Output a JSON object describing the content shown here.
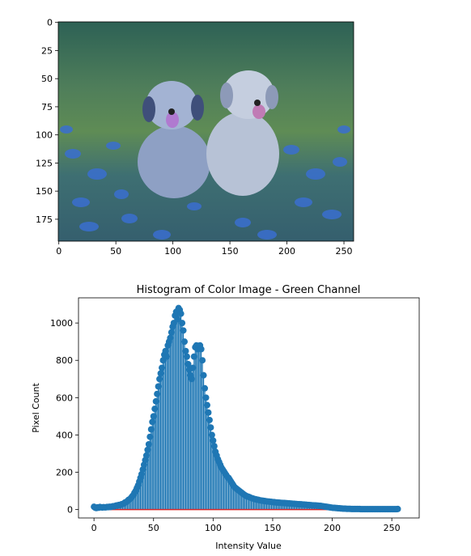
{
  "chart_data": [
    {
      "type": "image",
      "xlim": [
        -0.5,
        258.5
      ],
      "ylim": [
        194.5,
        -0.5
      ],
      "xticks": [
        0,
        50,
        100,
        150,
        200,
        250
      ],
      "yticks": [
        0,
        25,
        50,
        75,
        100,
        125,
        150,
        175
      ]
    },
    {
      "type": "stem",
      "title": "Histogram of Color Image - Green Channel",
      "xlabel": "Intensity Value",
      "ylabel": "Pixel Count",
      "color": "#1f77b4",
      "baseline_color": "#d62728",
      "xlim": [
        -13,
        273
      ],
      "ylim": [
        -45,
        1135
      ],
      "xticks": [
        0,
        50,
        100,
        150,
        200,
        250
      ],
      "yticks": [
        0,
        200,
        400,
        600,
        800,
        1000
      ],
      "x": [
        0,
        1,
        2,
        3,
        4,
        5,
        6,
        7,
        8,
        9,
        10,
        11,
        12,
        13,
        14,
        15,
        16,
        17,
        18,
        19,
        20,
        21,
        22,
        23,
        24,
        25,
        26,
        27,
        28,
        29,
        30,
        31,
        32,
        33,
        34,
        35,
        36,
        37,
        38,
        39,
        40,
        41,
        42,
        43,
        44,
        45,
        46,
        47,
        48,
        49,
        50,
        51,
        52,
        53,
        54,
        55,
        56,
        57,
        58,
        59,
        60,
        61,
        62,
        63,
        64,
        65,
        66,
        67,
        68,
        69,
        70,
        71,
        72,
        73,
        74,
        75,
        76,
        77,
        78,
        79,
        80,
        81,
        82,
        83,
        84,
        85,
        86,
        87,
        88,
        89,
        90,
        91,
        92,
        93,
        94,
        95,
        96,
        97,
        98,
        99,
        100,
        101,
        102,
        103,
        104,
        105,
        106,
        107,
        108,
        109,
        110,
        111,
        112,
        113,
        114,
        115,
        116,
        117,
        118,
        119,
        120,
        121,
        122,
        123,
        124,
        125,
        126,
        127,
        128,
        129,
        130,
        131,
        132,
        133,
        134,
        135,
        136,
        137,
        138,
        139,
        140,
        141,
        142,
        143,
        144,
        145,
        146,
        147,
        148,
        149,
        150,
        151,
        152,
        153,
        154,
        155,
        156,
        157,
        158,
        159,
        160,
        161,
        162,
        163,
        164,
        165,
        166,
        167,
        168,
        169,
        170,
        171,
        172,
        173,
        174,
        175,
        176,
        177,
        178,
        179,
        180,
        181,
        182,
        183,
        184,
        185,
        186,
        187,
        188,
        189,
        190,
        191,
        192,
        193,
        194,
        195,
        196,
        197,
        198,
        199,
        200,
        201,
        202,
        203,
        204,
        205,
        206,
        207,
        208,
        209,
        210,
        211,
        212,
        213,
        214,
        215,
        216,
        217,
        218,
        219,
        220,
        221,
        222,
        223,
        224,
        225,
        226,
        227,
        228,
        229,
        230,
        231,
        232,
        233,
        234,
        235,
        236,
        237,
        238,
        239,
        240,
        241,
        242,
        243,
        244,
        245,
        246,
        247,
        248,
        249,
        250,
        251,
        252,
        253,
        254,
        255
      ],
      "values": [
        15,
        10,
        8,
        12,
        10,
        14,
        12,
        11,
        13,
        12,
        12,
        14,
        13,
        15,
        14,
        16,
        18,
        17,
        20,
        22,
        22,
        25,
        24,
        28,
        30,
        32,
        38,
        40,
        45,
        52,
        55,
        62,
        70,
        78,
        90,
        100,
        115,
        130,
        150,
        170,
        190,
        215,
        240,
        265,
        290,
        320,
        350,
        390,
        430,
        470,
        500,
        540,
        580,
        620,
        660,
        700,
        730,
        760,
        800,
        830,
        850,
        820,
        880,
        900,
        920,
        950,
        980,
        1000,
        1040,
        1060,
        1020,
        1080,
        1070,
        1050,
        1000,
        960,
        900,
        850,
        820,
        780,
        750,
        720,
        700,
        760,
        820,
        870,
        880,
        860,
        870,
        880,
        860,
        800,
        720,
        650,
        600,
        560,
        520,
        480,
        440,
        400,
        370,
        340,
        310,
        290,
        270,
        255,
        240,
        225,
        215,
        205,
        195,
        185,
        175,
        170,
        160,
        150,
        140,
        130,
        120,
        115,
        110,
        105,
        100,
        95,
        90,
        85,
        80,
        76,
        72,
        70,
        68,
        65,
        62,
        60,
        58,
        56,
        55,
        53,
        52,
        50,
        49,
        48,
        47,
        46,
        45,
        44,
        43,
        43,
        42,
        41,
        40,
        40,
        39,
        38,
        38,
        37,
        37,
        36,
        36,
        35,
        35,
        34,
        34,
        33,
        33,
        32,
        32,
        31,
        31,
        30,
        30,
        29,
        29,
        28,
        28,
        27,
        27,
        26,
        26,
        25,
        25,
        24,
        24,
        23,
        23,
        22,
        22,
        21,
        21,
        20,
        20,
        19,
        18,
        17,
        16,
        15,
        14,
        13,
        12,
        11,
        10,
        9,
        9,
        8,
        8,
        7,
        7,
        6,
        6,
        5,
        5,
        5,
        4,
        4,
        4,
        4,
        3,
        3,
        3,
        3,
        3,
        3,
        3,
        3,
        2,
        2,
        2,
        2,
        2,
        2,
        2,
        2,
        2,
        2,
        2,
        2,
        2,
        2,
        2,
        2,
        2,
        2,
        2,
        2,
        2,
        2,
        2,
        2,
        2,
        2,
        2,
        2,
        2,
        2,
        2,
        3
      ]
    }
  ]
}
